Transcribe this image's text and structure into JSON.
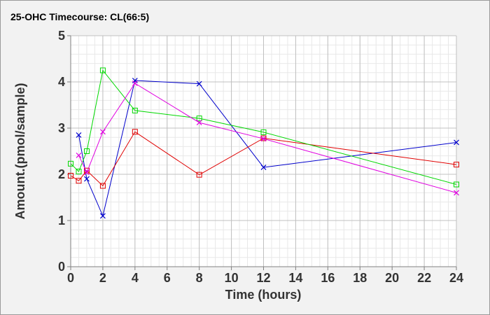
{
  "chart_data": {
    "type": "line",
    "title": "25-OHC Timecourse: CL(66:5)",
    "xlabel": "Time (hours)",
    "ylabel": "Amount.(pmol/sample)",
    "xlim": [
      0,
      24
    ],
    "ylim": [
      0,
      5
    ],
    "x_ticks": [
      0,
      2,
      4,
      6,
      8,
      10,
      12,
      14,
      16,
      18,
      20,
      22,
      24
    ],
    "y_ticks": [
      0,
      1,
      2,
      3,
      4,
      5
    ],
    "grid": true,
    "minor_grid": true,
    "legend": "none",
    "colors": {
      "background": "#f2f2f2",
      "plot_background": "#ffffff",
      "major_grid": "#c0c0c0",
      "minor_grid": "#e8e8e8",
      "axis": "#808080"
    },
    "series": [
      {
        "color": "#0000cc",
        "marker": "x",
        "x": [
          0.5,
          1,
          2,
          4,
          8,
          12,
          24
        ],
        "y": [
          2.85,
          1.9,
          1.1,
          4.03,
          3.96,
          2.15,
          2.69
        ]
      },
      {
        "color": "#e00000",
        "marker": "square",
        "x": [
          0,
          0.5,
          1,
          2,
          4,
          8,
          12,
          24
        ],
        "y": [
          1.97,
          1.86,
          2.08,
          1.75,
          2.92,
          1.99,
          2.78,
          2.21
        ]
      },
      {
        "color": "#00d800",
        "marker": "square",
        "x": [
          0,
          0.5,
          1,
          2,
          4,
          8,
          12,
          24
        ],
        "y": [
          2.23,
          2.06,
          2.5,
          4.25,
          3.38,
          3.21,
          2.91,
          1.78
        ]
      },
      {
        "color": "#e000e0",
        "marker": "x",
        "x": [
          0.5,
          1,
          2,
          4,
          8,
          12,
          24
        ],
        "y": [
          2.41,
          2.04,
          2.92,
          3.97,
          3.12,
          2.77,
          1.6
        ]
      }
    ]
  }
}
